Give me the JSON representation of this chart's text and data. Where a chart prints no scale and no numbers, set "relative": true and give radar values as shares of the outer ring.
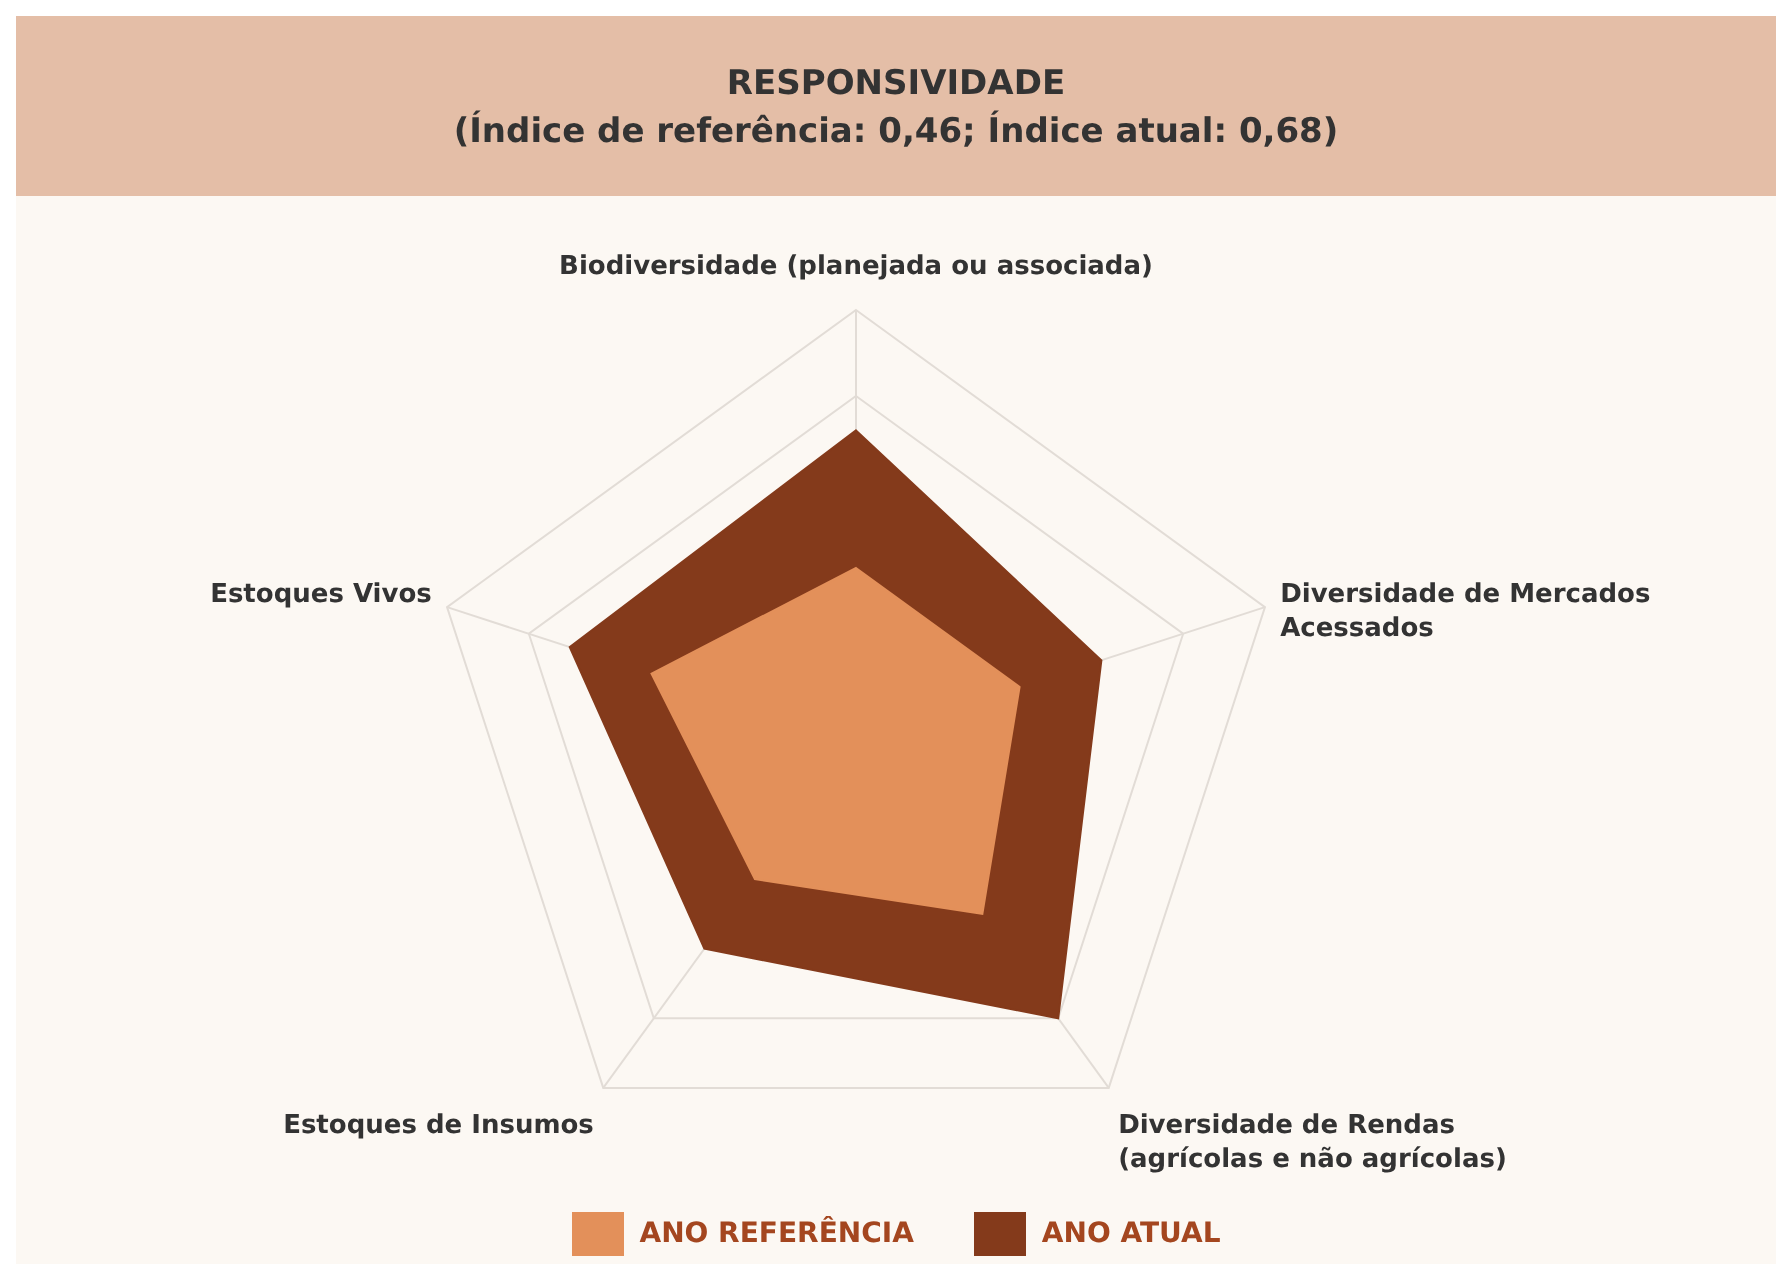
{
  "chart_data": {
    "type": "radar",
    "title": "RESPONSIVIDADE",
    "subtitle": "(Índice de referência: 0,46; Índice atual: 0,68)",
    "relative": true,
    "categories": [
      "Biodiversidade (planejada ou associada)",
      "Diversidade de Mercados Acessados",
      "Diversidade de Rendas (agrícolas e não agrícolas)",
      "Estoques de Insumos",
      "Estoques Vivos"
    ],
    "series": [
      {
        "name": "ANO REFERÊNCIA",
        "color": "#e3905a",
        "values": [
          0.4,
          0.4,
          0.5,
          0.4,
          0.5
        ]
      },
      {
        "name": "ANO ATUAL",
        "color": "#843a1b",
        "values": [
          0.72,
          0.6,
          0.8,
          0.6,
          0.7
        ]
      }
    ],
    "legend": "bottom",
    "grid": true
  }
}
